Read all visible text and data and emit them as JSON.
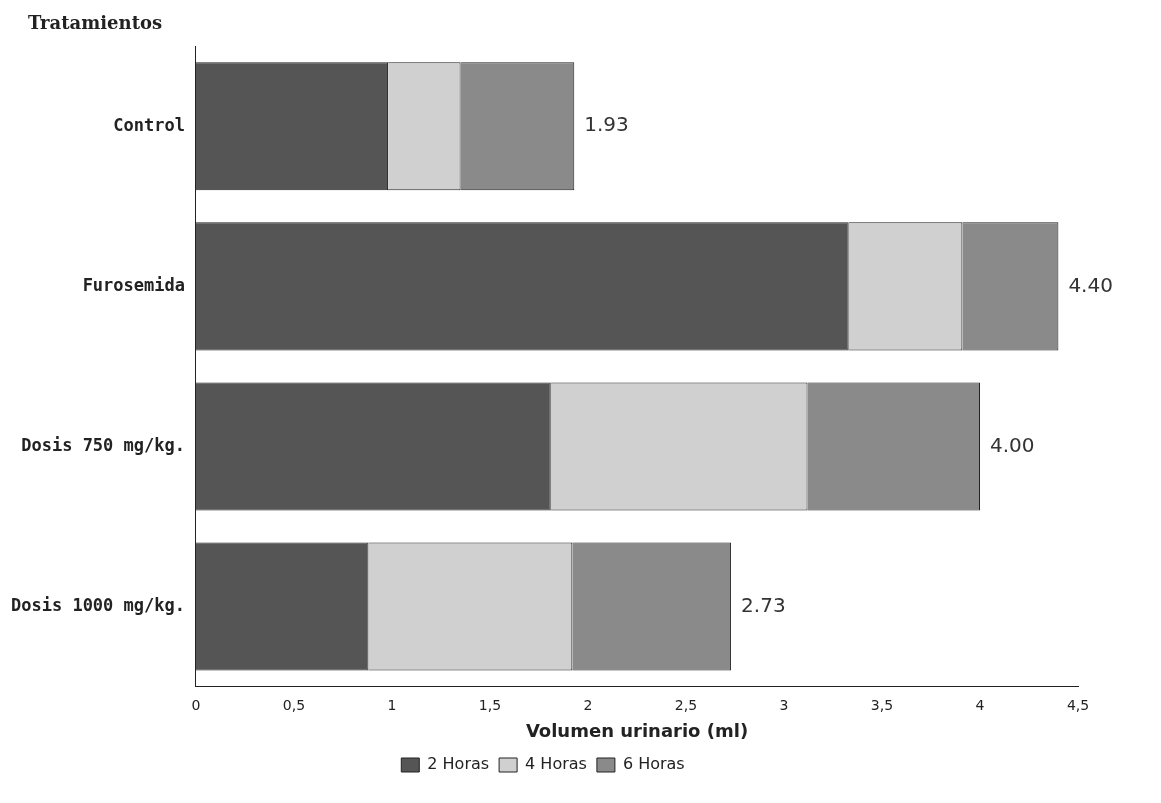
{
  "chart_data": {
    "type": "bar",
    "orientation": "horizontal",
    "stacked": true,
    "ylabel": "Tratamientos",
    "xlabel": "Volumen urinario (ml)",
    "categories": [
      "Control",
      "Furosemida",
      "Dosis 750 mg/kg.",
      "Dosis 1000 mg/kg."
    ],
    "series": [
      {
        "name": "2 Horas",
        "color": "#555555",
        "values": [
          0.98,
          3.33,
          1.81,
          0.88
        ]
      },
      {
        "name": "4 Horas",
        "color": "#d0d0d0",
        "values": [
          0.37,
          0.58,
          1.31,
          1.04
        ]
      },
      {
        "name": "6 Horas",
        "color": "#8a8a8a",
        "values": [
          0.58,
          0.49,
          0.88,
          0.81
        ]
      }
    ],
    "totals": [
      "1.93",
      "4.40",
      "4.00",
      "2.73"
    ],
    "xlim": [
      0,
      4.5
    ],
    "xticks": [
      0,
      {
        "value": 0.5,
        "label": "0,5"
      },
      1,
      {
        "value": 1.5,
        "label": "1,5"
      },
      2,
      {
        "value": 2.5,
        "label": "2,5"
      },
      3,
      {
        "value": 3.5,
        "label": "3,5"
      },
      4,
      {
        "value": 4.5,
        "label": "4,5"
      }
    ],
    "grid": false,
    "legend": "bottom"
  }
}
